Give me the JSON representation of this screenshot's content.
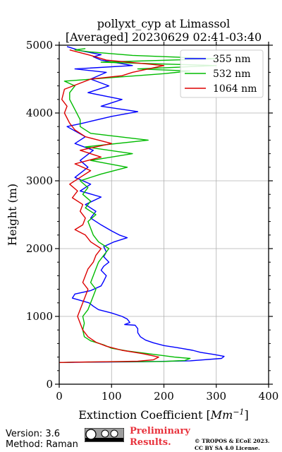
{
  "chart_data": {
    "type": "line",
    "title_line1": "pollyxt_cyp at Limassol",
    "title_line2": "[Averaged] 20230629 02:41-03:40",
    "xlabel": "Extinction Coefficient [",
    "xlabel_unit": "Mm",
    "xlabel_exp": "−1",
    "xlabel_close": "]",
    "ylabel": "Height (m)",
    "xlim": [
      0,
      400
    ],
    "ylim": [
      0,
      5000
    ],
    "xticks": [
      "0",
      "100",
      "200",
      "300",
      "400"
    ],
    "yticks": [
      "0",
      "1000",
      "2000",
      "3000",
      "4000",
      "5000"
    ],
    "grid": true,
    "legend_position": "top-right",
    "colors": {
      "355 nm": "#0000ff",
      "532 nm": "#00bb00",
      "1064 nm": "#dd0000"
    },
    "series": [
      {
        "name": "355 nm",
        "points": [
          [
            0,
            320
          ],
          [
            50,
            325
          ],
          [
            150,
            330
          ],
          [
            250,
            345
          ],
          [
            310,
            380
          ],
          [
            315,
            410
          ],
          [
            295,
            440
          ],
          [
            270,
            470
          ],
          [
            255,
            500
          ],
          [
            225,
            540
          ],
          [
            200,
            570
          ],
          [
            180,
            610
          ],
          [
            165,
            650
          ],
          [
            155,
            700
          ],
          [
            150,
            760
          ],
          [
            150,
            820
          ],
          [
            145,
            870
          ],
          [
            125,
            880
          ],
          [
            135,
            910
          ],
          [
            130,
            960
          ],
          [
            120,
            1000
          ],
          [
            100,
            1050
          ],
          [
            75,
            1100
          ],
          [
            65,
            1150
          ],
          [
            57,
            1200
          ],
          [
            25,
            1270
          ],
          [
            30,
            1330
          ],
          [
            60,
            1380
          ],
          [
            80,
            1450
          ],
          [
            85,
            1520
          ],
          [
            90,
            1600
          ],
          [
            80,
            1680
          ],
          [
            85,
            1740
          ],
          [
            95,
            1800
          ],
          [
            85,
            1880
          ],
          [
            90,
            1950
          ],
          [
            85,
            2030
          ],
          [
            105,
            2100
          ],
          [
            130,
            2160
          ],
          [
            115,
            2200
          ],
          [
            100,
            2260
          ],
          [
            80,
            2350
          ],
          [
            60,
            2450
          ],
          [
            70,
            2550
          ],
          [
            50,
            2650
          ],
          [
            80,
            2760
          ],
          [
            40,
            2850
          ],
          [
            60,
            2950
          ],
          [
            30,
            3050
          ],
          [
            55,
            3200
          ],
          [
            40,
            3300
          ],
          [
            65,
            3450
          ],
          [
            30,
            3550
          ],
          [
            50,
            3650
          ],
          [
            15,
            3800
          ],
          [
            45,
            3850
          ],
          [
            100,
            3950
          ],
          [
            150,
            4020
          ],
          [
            80,
            4100
          ],
          [
            120,
            4200
          ],
          [
            55,
            4300
          ],
          [
            95,
            4400
          ],
          [
            60,
            4500
          ],
          [
            90,
            4600
          ],
          [
            30,
            4650
          ],
          [
            140,
            4700
          ],
          [
            80,
            4780
          ],
          [
            65,
            4830
          ],
          [
            80,
            4860
          ],
          [
            40,
            4920
          ],
          [
            15,
            4980
          ]
        ]
      },
      {
        "name": "532 nm",
        "points": [
          [
            0,
            320
          ],
          [
            30,
            325
          ],
          [
            100,
            330
          ],
          [
            200,
            335
          ],
          [
            240,
            350
          ],
          [
            250,
            380
          ],
          [
            220,
            400
          ],
          [
            190,
            430
          ],
          [
            160,
            460
          ],
          [
            130,
            490
          ],
          [
            100,
            530
          ],
          [
            85,
            580
          ],
          [
            60,
            640
          ],
          [
            48,
            700
          ],
          [
            45,
            800
          ],
          [
            48,
            900
          ],
          [
            45,
            1000
          ],
          [
            55,
            1100
          ],
          [
            60,
            1200
          ],
          [
            65,
            1300
          ],
          [
            70,
            1400
          ],
          [
            60,
            1500
          ],
          [
            65,
            1600
          ],
          [
            70,
            1700
          ],
          [
            75,
            1800
          ],
          [
            85,
            1900
          ],
          [
            95,
            2000
          ],
          [
            75,
            2100
          ],
          [
            65,
            2200
          ],
          [
            60,
            2300
          ],
          [
            55,
            2400
          ],
          [
            70,
            2500
          ],
          [
            50,
            2600
          ],
          [
            60,
            2700
          ],
          [
            45,
            2800
          ],
          [
            55,
            2900
          ],
          [
            40,
            3000
          ],
          [
            80,
            3100
          ],
          [
            130,
            3200
          ],
          [
            60,
            3300
          ],
          [
            140,
            3400
          ],
          [
            50,
            3500
          ],
          [
            170,
            3600
          ],
          [
            60,
            3700
          ],
          [
            40,
            3800
          ],
          [
            40,
            3900
          ],
          [
            30,
            4050
          ],
          [
            20,
            4200
          ],
          [
            20,
            4300
          ],
          [
            30,
            4400
          ],
          [
            10,
            4470
          ],
          [
            200,
            4580
          ],
          [
            250,
            4620
          ],
          [
            150,
            4650
          ],
          [
            300,
            4700
          ],
          [
            80,
            4750
          ],
          [
            300,
            4800
          ],
          [
            140,
            4850
          ],
          [
            60,
            4900
          ],
          [
            30,
            4930
          ],
          [
            50,
            4950
          ]
        ]
      },
      {
        "name": "1064 nm",
        "points": [
          [
            0,
            320
          ],
          [
            30,
            325
          ],
          [
            80,
            330
          ],
          [
            150,
            340
          ],
          [
            180,
            360
          ],
          [
            190,
            400
          ],
          [
            160,
            450
          ],
          [
            120,
            500
          ],
          [
            90,
            560
          ],
          [
            70,
            620
          ],
          [
            55,
            700
          ],
          [
            45,
            800
          ],
          [
            40,
            900
          ],
          [
            35,
            1000
          ],
          [
            40,
            1100
          ],
          [
            45,
            1200
          ],
          [
            50,
            1300
          ],
          [
            55,
            1400
          ],
          [
            45,
            1500
          ],
          [
            50,
            1600
          ],
          [
            55,
            1700
          ],
          [
            65,
            1800
          ],
          [
            70,
            1900
          ],
          [
            80,
            2000
          ],
          [
            60,
            2100
          ],
          [
            50,
            2200
          ],
          [
            30,
            2280
          ],
          [
            45,
            2350
          ],
          [
            50,
            2450
          ],
          [
            40,
            2550
          ],
          [
            45,
            2650
          ],
          [
            25,
            2750
          ],
          [
            35,
            2850
          ],
          [
            20,
            2950
          ],
          [
            40,
            3050
          ],
          [
            60,
            3150
          ],
          [
            30,
            3250
          ],
          [
            80,
            3350
          ],
          [
            40,
            3450
          ],
          [
            100,
            3550
          ],
          [
            50,
            3650
          ],
          [
            30,
            3750
          ],
          [
            20,
            3850
          ],
          [
            10,
            4000
          ],
          [
            15,
            4100
          ],
          [
            5,
            4200
          ],
          [
            10,
            4350
          ],
          [
            60,
            4500
          ],
          [
            120,
            4550
          ],
          [
            140,
            4600
          ],
          [
            200,
            4700
          ],
          [
            90,
            4780
          ],
          [
            60,
            4850
          ],
          [
            20,
            4930
          ]
        ]
      }
    ]
  },
  "footer": {
    "version": "Version: 3.6",
    "method": "Method: Raman",
    "preliminary_line1": "Preliminary",
    "preliminary_line2": "Results.",
    "copyright_line1": "© TROPOS & ECoE 2023.",
    "copyright_line2": "CC BY SA 4.0 License."
  }
}
